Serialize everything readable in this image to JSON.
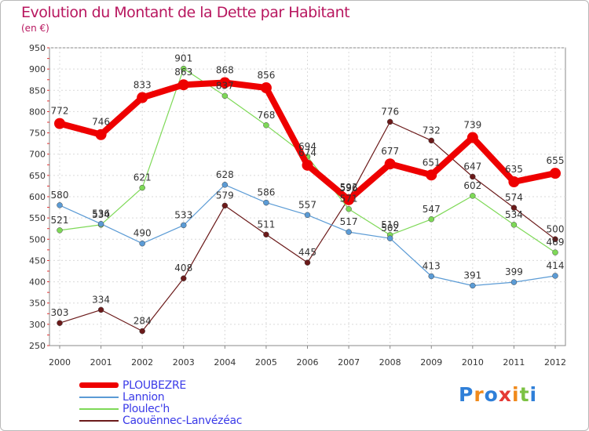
{
  "title": "Evolution du Montant de la Dette par Habitant",
  "unit": "(en €)",
  "logo": "Proxiti",
  "chart_data": {
    "type": "line",
    "title": "Evolution du Montant de la Dette par Habitant",
    "subtitle": "(en €)",
    "x": [
      "2000",
      "2001",
      "2002",
      "2003",
      "2004",
      "2005",
      "2006",
      "2007",
      "2008",
      "2009",
      "2010",
      "2011",
      "2012"
    ],
    "ylim": [
      250,
      950
    ],
    "yticks": [
      250,
      300,
      350,
      400,
      450,
      500,
      550,
      600,
      650,
      700,
      750,
      800,
      850,
      900,
      950
    ],
    "grid": true,
    "legend_position": "bottom-left",
    "series": [
      {
        "name": "PLOUBEZRE",
        "color": "#ee0000",
        "values": [
          772,
          746,
          833,
          863,
          868,
          856,
          674,
          593,
          677,
          651,
          739,
          635,
          655
        ]
      },
      {
        "name": "Lannion",
        "color": "#5b9bd5",
        "values": [
          580,
          536,
          490,
          533,
          628,
          586,
          557,
          517,
          502,
          413,
          391,
          399,
          414
        ]
      },
      {
        "name": "Ploulec'h",
        "color": "#7ed957",
        "values": [
          521,
          534,
          621,
          901,
          837,
          768,
          694,
          571,
          510,
          547,
          602,
          534,
          469
        ]
      },
      {
        "name": "Caouënnec-Lanvézéac",
        "color": "#6b1a1a",
        "values": [
          303,
          334,
          284,
          408,
          579,
          511,
          445,
          596,
          776,
          732,
          647,
          574,
          500
        ]
      }
    ]
  }
}
